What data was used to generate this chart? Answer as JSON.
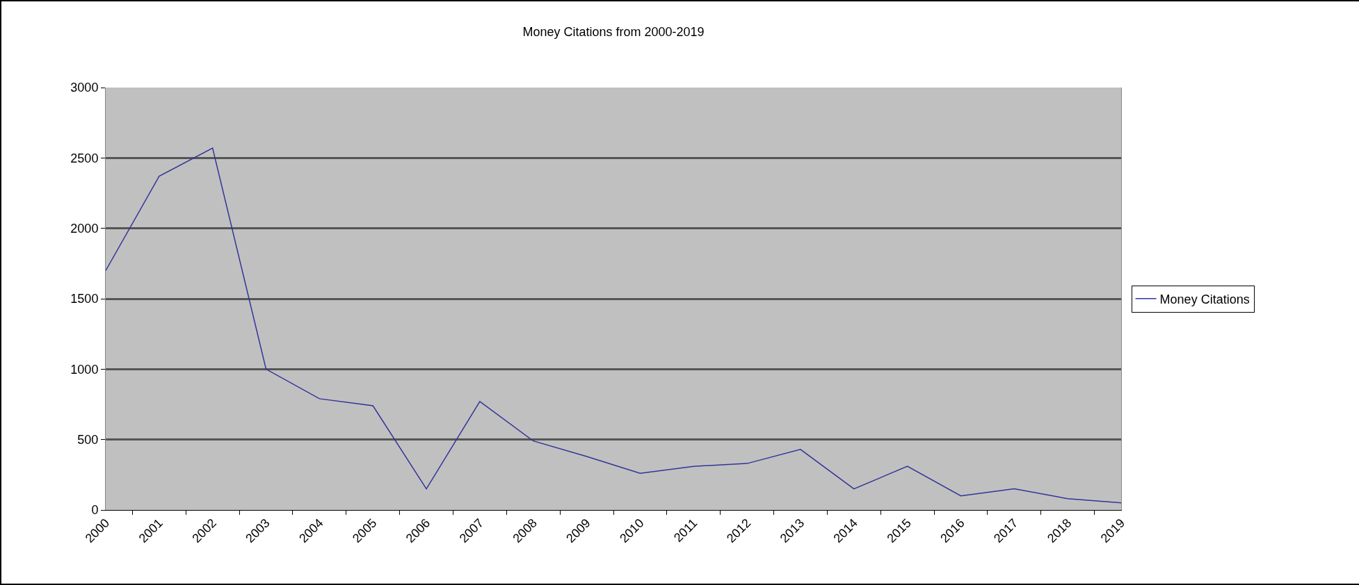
{
  "chart_data": {
    "type": "line",
    "title": "Money Citations from 2000-2019",
    "categories": [
      "2000",
      "2001",
      "2002",
      "2003",
      "2004",
      "2005",
      "2006",
      "2007",
      "2008",
      "2009",
      "2010",
      "2011",
      "2012",
      "2013",
      "2014",
      "2015",
      "2016",
      "2017",
      "2018",
      "2019"
    ],
    "series": [
      {
        "name": "Money Citations",
        "color": "#333399",
        "values": [
          1700,
          2370,
          2570,
          1000,
          790,
          740,
          150,
          770,
          490,
          380,
          260,
          310,
          330,
          430,
          150,
          310,
          100,
          150,
          80,
          50
        ]
      }
    ],
    "ylim": [
      0,
      3000
    ],
    "yticks": [
      0,
      500,
      1000,
      1500,
      2000,
      2500,
      3000
    ],
    "grid": "y",
    "legend": "right",
    "marker": "none",
    "line_style": "solid"
  }
}
